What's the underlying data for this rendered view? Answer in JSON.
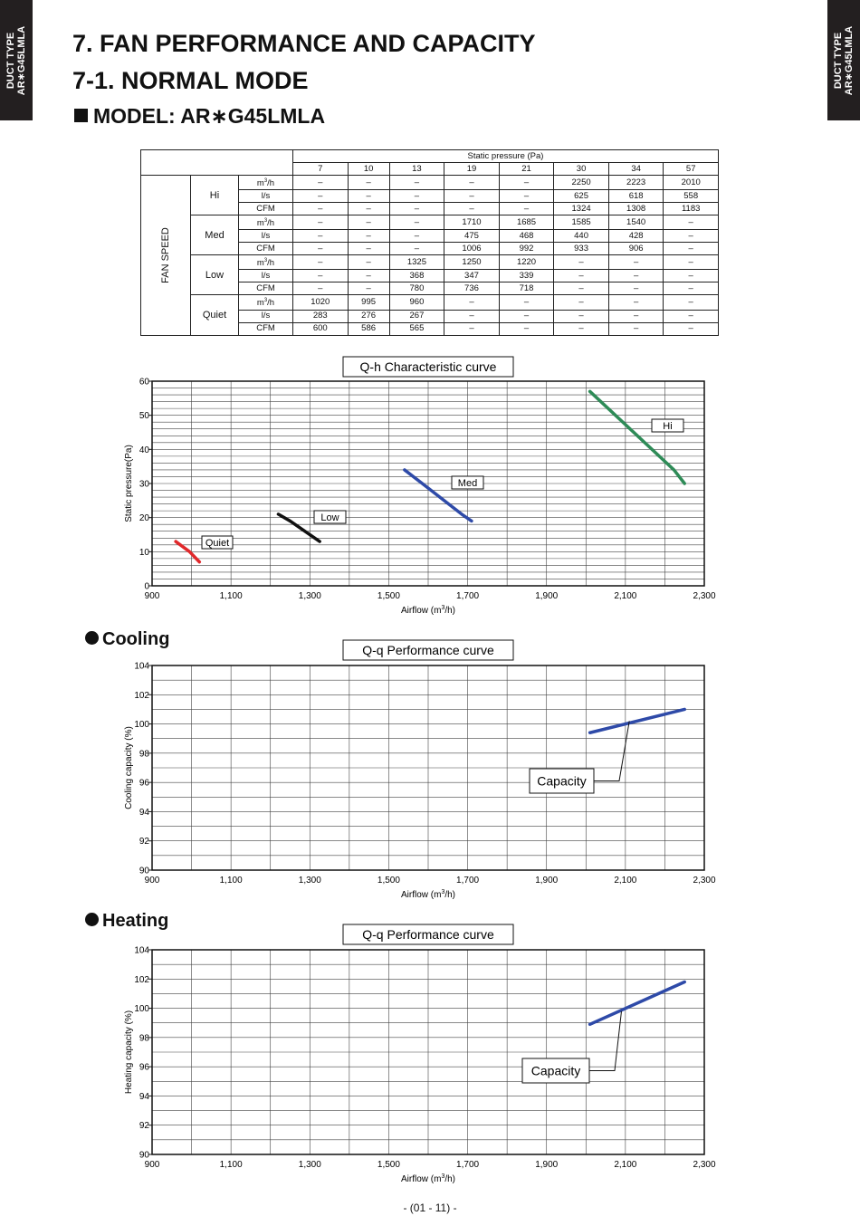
{
  "side_tab": {
    "line1": "DUCT TYPE",
    "line2": "AR∗G45LMLA"
  },
  "headings": {
    "section": "7. FAN PERFORMANCE AND CAPACITY",
    "subsection": "7-1. NORMAL MODE",
    "model": "MODEL: AR∗G45LMLA"
  },
  "table": {
    "header_group": "Static pressure (Pa)",
    "pressures": [
      "7",
      "10",
      "13",
      "19",
      "21",
      "30",
      "34",
      "57"
    ],
    "row_group_label": "FAN SPEED",
    "groups": [
      {
        "level": "Hi",
        "rows": [
          {
            "unit": "m³/h",
            "values": [
              "–",
              "–",
              "–",
              "–",
              "–",
              "2250",
              "2223",
              "2010"
            ]
          },
          {
            "unit": "l/s",
            "values": [
              "–",
              "–",
              "–",
              "–",
              "–",
              "625",
              "618",
              "558"
            ]
          },
          {
            "unit": "CFM",
            "values": [
              "–",
              "–",
              "–",
              "–",
              "–",
              "1324",
              "1308",
              "1183"
            ]
          }
        ]
      },
      {
        "level": "Med",
        "rows": [
          {
            "unit": "m³/h",
            "values": [
              "–",
              "–",
              "–",
              "1710",
              "1685",
              "1585",
              "1540",
              "–"
            ]
          },
          {
            "unit": "l/s",
            "values": [
              "–",
              "–",
              "–",
              "475",
              "468",
              "440",
              "428",
              "–"
            ]
          },
          {
            "unit": "CFM",
            "values": [
              "–",
              "–",
              "–",
              "1006",
              "992",
              "933",
              "906",
              "–"
            ]
          }
        ]
      },
      {
        "level": "Low",
        "rows": [
          {
            "unit": "m³/h",
            "values": [
              "–",
              "–",
              "1325",
              "1250",
              "1220",
              "–",
              "–",
              "–"
            ]
          },
          {
            "unit": "l/s",
            "values": [
              "–",
              "–",
              "368",
              "347",
              "339",
              "–",
              "–",
              "–"
            ]
          },
          {
            "unit": "CFM",
            "values": [
              "–",
              "–",
              "780",
              "736",
              "718",
              "–",
              "–",
              "–"
            ]
          }
        ]
      },
      {
        "level": "Quiet",
        "rows": [
          {
            "unit": "m³/h",
            "values": [
              "1020",
              "995",
              "960",
              "–",
              "–",
              "–",
              "–",
              "–"
            ]
          },
          {
            "unit": "l/s",
            "values": [
              "283",
              "276",
              "267",
              "–",
              "–",
              "–",
              "–",
              "–"
            ]
          },
          {
            "unit": "CFM",
            "values": [
              "600",
              "586",
              "565",
              "–",
              "–",
              "–",
              "–",
              "–"
            ]
          }
        ]
      }
    ]
  },
  "sections": {
    "cooling": "Cooling",
    "heating": "Heating"
  },
  "chart_data": [
    {
      "type": "line",
      "title": "Q-h Characteristic curve",
      "xlabel": "Airflow (m³/h)",
      "ylabel": "Static pressure(Pa)",
      "xlim": [
        900,
        2300
      ],
      "ylim": [
        0,
        60
      ],
      "x_ticks": [
        "900",
        "1,100",
        "1,300",
        "1,500",
        "1,700",
        "1,900",
        "2,100",
        "2,300"
      ],
      "y_ticks": [
        "0",
        "10",
        "20",
        "30",
        "40",
        "50",
        "60"
      ],
      "grid": true,
      "series": [
        {
          "name": "Quiet",
          "color": "#e0282b",
          "x": [
            960,
            995,
            1020
          ],
          "y": [
            13,
            10,
            7
          ]
        },
        {
          "name": "Low",
          "color": "#111111",
          "x": [
            1220,
            1250,
            1325
          ],
          "y": [
            21,
            19,
            13
          ]
        },
        {
          "name": "Med",
          "color": "#2e4aa8",
          "x": [
            1540,
            1585,
            1685,
            1710
          ],
          "y": [
            34,
            30,
            21,
            19
          ]
        },
        {
          "name": "Hi",
          "color": "#2e8b57",
          "x": [
            2010,
            2223,
            2250
          ],
          "y": [
            57,
            34,
            30
          ]
        }
      ]
    },
    {
      "type": "line",
      "title": "Q-q Performance curve",
      "xlabel": "Airflow (m³/h)",
      "ylabel": "Cooling capacity (%)",
      "xlim": [
        900,
        2300
      ],
      "ylim": [
        90,
        104
      ],
      "x_ticks": [
        "900",
        "1,100",
        "1,300",
        "1,500",
        "1,700",
        "1,900",
        "2,100",
        "2,300"
      ],
      "y_ticks": [
        "90",
        "92",
        "94",
        "96",
        "98",
        "100",
        "102",
        "104"
      ],
      "grid": true,
      "series": [
        {
          "name": "Capacity",
          "color": "#2e4aa8",
          "x": [
            2010,
            2250
          ],
          "y": [
            99.4,
            101.0
          ]
        }
      ]
    },
    {
      "type": "line",
      "title": "Q-q Performance curve",
      "xlabel": "Airflow (m³/h)",
      "ylabel": "Heating capacity (%)",
      "xlim": [
        900,
        2300
      ],
      "ylim": [
        90,
        104
      ],
      "x_ticks": [
        "900",
        "1,100",
        "1,300",
        "1,500",
        "1,700",
        "1,900",
        "2,100",
        "2,300"
      ],
      "y_ticks": [
        "90",
        "92",
        "94",
        "96",
        "98",
        "100",
        "102",
        "104"
      ],
      "grid": true,
      "series": [
        {
          "name": "Capacity",
          "color": "#2e4aa8",
          "x": [
            2010,
            2250
          ],
          "y": [
            98.9,
            101.8
          ]
        }
      ]
    }
  ],
  "footer": "- (01 - 11) -"
}
